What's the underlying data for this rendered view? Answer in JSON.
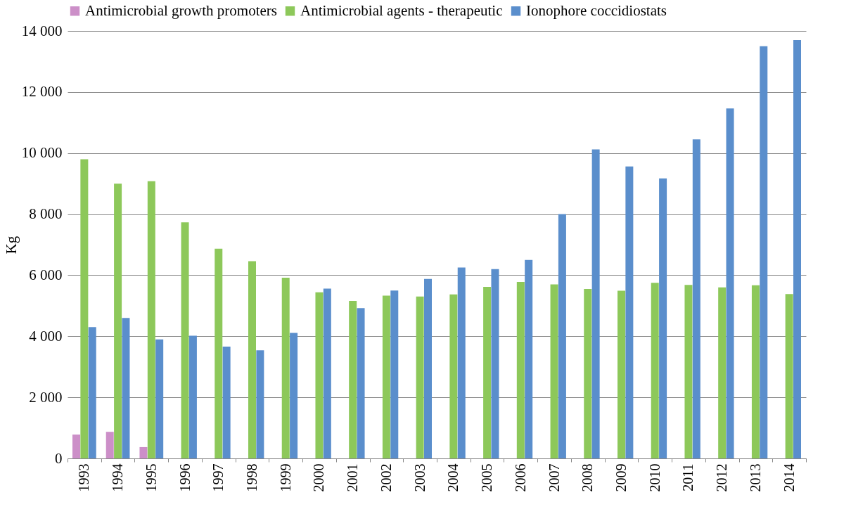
{
  "chart_data": {
    "type": "bar",
    "ylabel": "Kg",
    "categories": [
      "1993",
      "1994",
      "1995",
      "1996",
      "1997",
      "1998",
      "1999",
      "2000",
      "2001",
      "2002",
      "2003",
      "2004",
      "2005",
      "2006",
      "2007",
      "2008",
      "2009",
      "2010",
      "2011",
      "2012",
      "2013",
      "2014"
    ],
    "series": [
      {
        "name": "Antimicrobial growth promoters",
        "color": "#cc8fc8",
        "values": [
          780,
          870,
          370,
          null,
          null,
          null,
          null,
          null,
          null,
          null,
          null,
          null,
          null,
          null,
          null,
          null,
          null,
          null,
          null,
          null,
          null,
          null
        ]
      },
      {
        "name": "Antimicrobial agents - therapeutic",
        "color": "#8dc85a",
        "values": [
          9800,
          9000,
          9080,
          7730,
          6870,
          6460,
          5920,
          5440,
          5160,
          5330,
          5300,
          5370,
          5620,
          5780,
          5700,
          5550,
          5490,
          5750,
          5680,
          5600,
          5670,
          5380
        ]
      },
      {
        "name": "Ionophore coccidiostats",
        "color": "#5a8ecc",
        "values": [
          4300,
          4600,
          3900,
          4020,
          3660,
          3540,
          4110,
          5560,
          4920,
          5500,
          5880,
          6250,
          6200,
          6500,
          8000,
          10120,
          9560,
          9170,
          10450,
          11460,
          13500,
          13700
        ]
      }
    ],
    "ylim": [
      0,
      14000
    ],
    "yticks": [
      0,
      {
        "value": 2000,
        "label": "2 000"
      },
      {
        "value": 4000,
        "label": "4 000"
      },
      {
        "value": 6000,
        "label": "6 000"
      },
      {
        "value": 8000,
        "label": "8 000"
      },
      {
        "value": 10000,
        "label": "10 000"
      },
      {
        "value": 12000,
        "label": "12 000"
      },
      {
        "value": 14000,
        "label": "14 000"
      }
    ],
    "grid": "y",
    "legend": "top"
  }
}
